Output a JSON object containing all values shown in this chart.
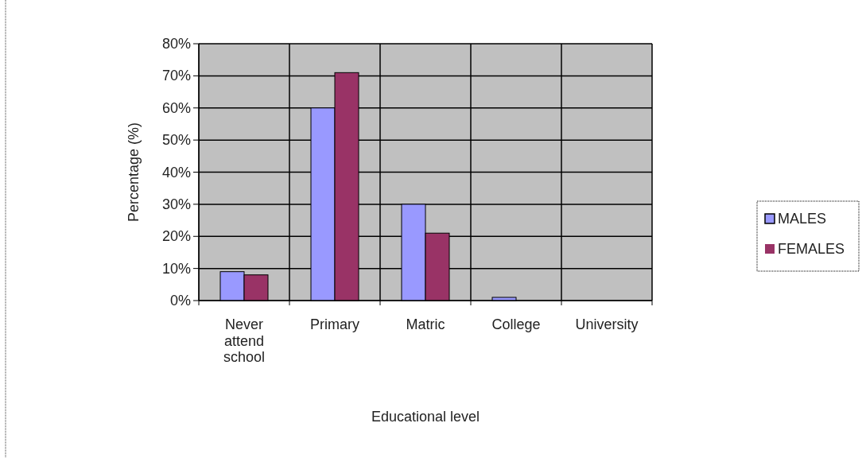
{
  "chart_data": {
    "type": "bar",
    "xlabel": "Educational level",
    "ylabel": "Percentage (%)",
    "categories": [
      "Never attend school",
      "Primary",
      "Matric",
      "College",
      "University"
    ],
    "series": [
      {
        "name": "MALES",
        "color": "#9999ff",
        "values": [
          9,
          60,
          30,
          1,
          0
        ]
      },
      {
        "name": "FEMALES",
        "color": "#993366",
        "values": [
          8,
          71,
          21,
          0,
          0
        ]
      }
    ],
    "ylim": [
      0,
      80
    ],
    "yticks": [
      {
        "value": 0,
        "label": "0%"
      },
      {
        "value": 10,
        "label": "10%"
      },
      {
        "value": 20,
        "label": "20%"
      },
      {
        "value": 30,
        "label": "30%"
      },
      {
        "value": 40,
        "label": "40%"
      },
      {
        "value": 50,
        "label": "50%"
      },
      {
        "value": 60,
        "label": "60%"
      },
      {
        "value": 70,
        "label": "70%"
      },
      {
        "value": 80,
        "label": "80%"
      }
    ],
    "grid": true,
    "legend": "right"
  }
}
